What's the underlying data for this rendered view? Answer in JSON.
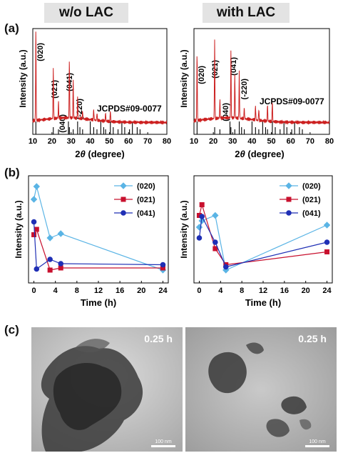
{
  "header": {
    "left_label": "w/o LAC",
    "right_label": "with LAC"
  },
  "panel_labels": {
    "a": "(a)",
    "b": "(b)",
    "c": "(c)"
  },
  "xrd_left": {
    "ylabel": "Intensity (a.u.)",
    "xlabel_prefix": "2",
    "xlabel_theta": "θ",
    "xlabel_suffix": " (degree)",
    "reference": "JCPDS#09-0077",
    "peak_labels": [
      "(020)",
      "(021)",
      "(040)",
      "(041)",
      "(-220)"
    ]
  },
  "xrd_right": {
    "ylabel": "Intensity (a.u.)",
    "xlabel_prefix": "2",
    "xlabel_theta": "θ",
    "xlabel_suffix": " (degree)",
    "reference": "JCPDS#09-0077",
    "peak_labels": [
      "(020)",
      "(021)",
      "(040)",
      "(041)",
      "(-220)"
    ]
  },
  "chart_data": [
    {
      "type": "line",
      "xlabel": "2θ (degree)",
      "ylabel": "Intensity (a.u.)",
      "xlim": [
        10,
        80
      ],
      "x_ticks": [
        10,
        20,
        30,
        40,
        50,
        60,
        70,
        80
      ],
      "annotations": [
        "(020)",
        "(021)",
        "(040)",
        "(041)",
        "(-220)",
        "JCPDS#09-0077"
      ],
      "series": [
        {
          "name": "",
          "color": "#cc2020",
          "peaks": [
            {
              "x": 11.6,
              "y": 1.0
            },
            {
              "x": 20.7,
              "y": 0.55
            },
            {
              "x": 23.4,
              "y": 0.18
            },
            {
              "x": 29.1,
              "y": 0.62
            },
            {
              "x": 31.1,
              "y": 0.42
            },
            {
              "x": 33.4,
              "y": 0.22
            },
            {
              "x": 36.0,
              "y": 0.08
            },
            {
              "x": 41.8,
              "y": 0.12
            },
            {
              "x": 43.5,
              "y": 0.08
            },
            {
              "x": 48.0,
              "y": 0.09
            },
            {
              "x": 50.5,
              "y": 0.12
            }
          ]
        }
      ],
      "reference_lines_x": [
        11.6,
        20.7,
        23.4,
        28.6,
        29.1,
        31.1,
        33.4,
        34.6,
        36.0,
        40.0,
        41.8,
        43.5,
        45.5,
        47.0,
        48.0,
        50.5,
        52.0,
        54.5,
        56.5,
        58.0,
        60.5,
        62.0,
        64.5,
        66.0
      ]
    },
    {
      "type": "line",
      "xlabel": "2θ (degree)",
      "ylabel": "Intensity (a.u.)",
      "xlim": [
        10,
        80
      ],
      "x_ticks": [
        10,
        20,
        30,
        40,
        50,
        60,
        70,
        80
      ],
      "annotations": [
        "(020)",
        "(021)",
        "(040)",
        "(041)",
        "(-220)",
        "JCPDS#09-0077"
      ],
      "series": [
        {
          "name": "",
          "color": "#cc2020",
          "peaks": [
            {
              "x": 11.6,
              "y": 0.72
            },
            {
              "x": 20.7,
              "y": 0.86
            },
            {
              "x": 23.4,
              "y": 0.2
            },
            {
              "x": 29.1,
              "y": 0.74
            },
            {
              "x": 31.1,
              "y": 0.48
            },
            {
              "x": 33.4,
              "y": 0.5
            },
            {
              "x": 36.0,
              "y": 0.12
            },
            {
              "x": 41.8,
              "y": 0.16
            },
            {
              "x": 43.5,
              "y": 0.12
            },
            {
              "x": 48.0,
              "y": 0.18
            },
            {
              "x": 50.5,
              "y": 0.22
            }
          ]
        }
      ],
      "reference_lines_x": [
        11.6,
        20.7,
        23.4,
        28.6,
        29.1,
        31.1,
        33.4,
        34.6,
        36.0,
        40.0,
        41.8,
        43.5,
        45.5,
        47.0,
        48.0,
        50.5,
        52.0,
        54.5,
        56.5,
        58.0,
        60.5,
        62.0,
        64.5,
        66.0
      ]
    },
    {
      "type": "line",
      "xlabel": "Time (h)",
      "ylabel": "Intensity (a.u.)",
      "xlim": [
        -1,
        25
      ],
      "x_ticks": [
        0,
        4,
        8,
        12,
        16,
        20,
        24
      ],
      "ylim": [
        0,
        1
      ],
      "legend": "top-right",
      "series": [
        {
          "name": "(020)",
          "color": "#5ab4e5",
          "marker": "diamond",
          "x": [
            0,
            0.5,
            3,
            5,
            24
          ],
          "y": [
            0.78,
            0.9,
            0.42,
            0.46,
            0.12
          ]
        },
        {
          "name": "(021)",
          "color": "#c8102e",
          "marker": "square",
          "x": [
            0,
            0.5,
            3,
            5,
            24
          ],
          "y": [
            0.45,
            0.5,
            0.12,
            0.14,
            0.14
          ]
        },
        {
          "name": "(041)",
          "color": "#1f2fb5",
          "marker": "circle",
          "x": [
            0,
            0.5,
            3,
            5,
            24
          ],
          "y": [
            0.57,
            0.13,
            0.22,
            0.18,
            0.17
          ]
        }
      ]
    },
    {
      "type": "line",
      "xlabel": "Time (h)",
      "ylabel": "Intensity (a.u.)",
      "xlim": [
        -1,
        25
      ],
      "x_ticks": [
        0,
        4,
        8,
        12,
        16,
        20,
        24
      ],
      "ylim": [
        0,
        1
      ],
      "legend": "top-right",
      "series": [
        {
          "name": "(020)",
          "color": "#5ab4e5",
          "marker": "diamond",
          "x": [
            0,
            0.5,
            3,
            5,
            24
          ],
          "y": [
            0.52,
            0.58,
            0.63,
            0.12,
            0.54
          ]
        },
        {
          "name": "(021)",
          "color": "#c8102e",
          "marker": "square",
          "x": [
            0,
            0.5,
            3,
            5,
            24
          ],
          "y": [
            0.63,
            0.73,
            0.32,
            0.17,
            0.29
          ]
        },
        {
          "name": "(041)",
          "color": "#1f2fb5",
          "marker": "circle",
          "x": [
            0,
            0.5,
            3,
            5,
            24
          ],
          "y": [
            0.42,
            0.62,
            0.38,
            0.15,
            0.38
          ]
        }
      ]
    }
  ],
  "tem": [
    {
      "time": "0.25 h",
      "scale": "100 nm"
    },
    {
      "time": "0.25 h",
      "scale": "100 nm"
    }
  ]
}
